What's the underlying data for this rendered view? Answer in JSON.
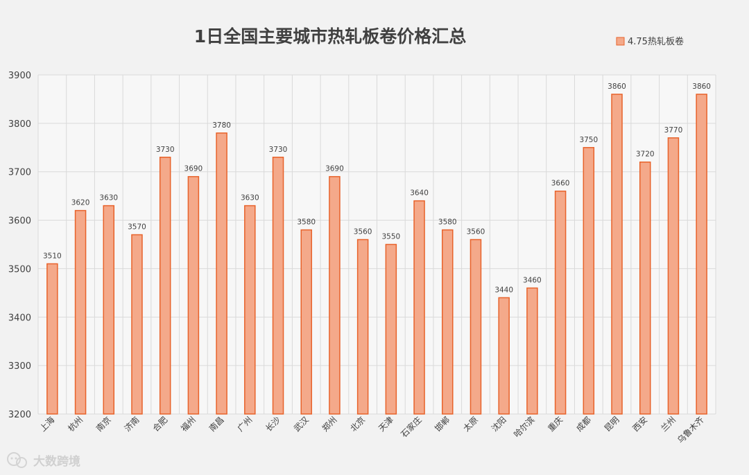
{
  "chart_data": {
    "type": "bar",
    "title": "1日全国主要城市热轧板卷价格汇总",
    "series": [
      {
        "name": "4.75热轧板卷",
        "values": [
          3510,
          3620,
          3630,
          3570,
          3730,
          3690,
          3780,
          3630,
          3730,
          3580,
          3690,
          3560,
          3550,
          3640,
          3580,
          3560,
          3440,
          3460,
          3660,
          3750,
          3860,
          3720,
          3770,
          3860
        ]
      }
    ],
    "categories": [
      "上海",
      "杭州",
      "南京",
      "济南",
      "合肥",
      "福州",
      "南昌",
      "广州",
      "长沙",
      "武汉",
      "郑州",
      "北京",
      "天津",
      "石家庄",
      "邯郸",
      "太原",
      "沈阳",
      "哈尔滨",
      "重庆",
      "成都",
      "昆明",
      "西安",
      "兰州",
      "乌鲁木齐"
    ],
    "ylim": [
      3200,
      3900
    ],
    "yticks": [
      "3200",
      "3300",
      "3400",
      "3500",
      "3600",
      "3700",
      "3800",
      "3900"
    ],
    "grid": true,
    "legend_position": "top-right",
    "colors": {
      "bar_fill": "#f4a98a",
      "bar_stroke": "#e8622a",
      "grid": "#d9d9d9",
      "background": "#f2f2f2"
    }
  },
  "watermark": {
    "text": "大数跨境",
    "icon": "wechat-logo-icon"
  }
}
